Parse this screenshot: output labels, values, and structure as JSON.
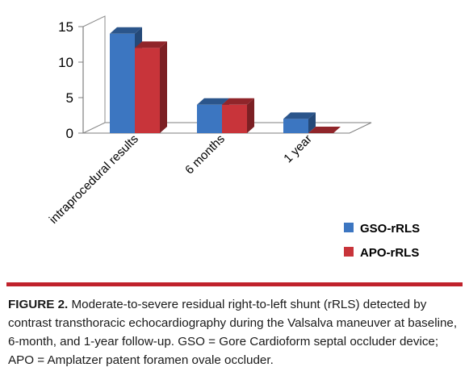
{
  "chart_data": {
    "type": "bar",
    "style": "3d-clustered-column",
    "categories": [
      "intraprocedural results",
      "6 months",
      "1 year"
    ],
    "series": [
      {
        "name": "GSO-rRLS",
        "values": [
          14,
          4,
          2
        ],
        "color": "#3c76c1"
      },
      {
        "name": "APO-rRLS",
        "values": [
          12,
          4,
          0
        ],
        "color": "#c8343a"
      }
    ],
    "ylim": [
      0,
      15
    ],
    "yticks": [
      0,
      5,
      10,
      15
    ],
    "legend_position": "bottom-right",
    "grid": false
  },
  "caption": {
    "label": "FIGURE 2.",
    "text": "Moderate-to-severe residual right-to-left shunt (rRLS) detected by contrast transthoracic echocardiography during the Valsalva maneuver at baseline, 6-month, and 1-year follow-up. GSO = Gore Cardioform septal occluder device; APO = Amplatzer patent foramen ovale occluder."
  }
}
